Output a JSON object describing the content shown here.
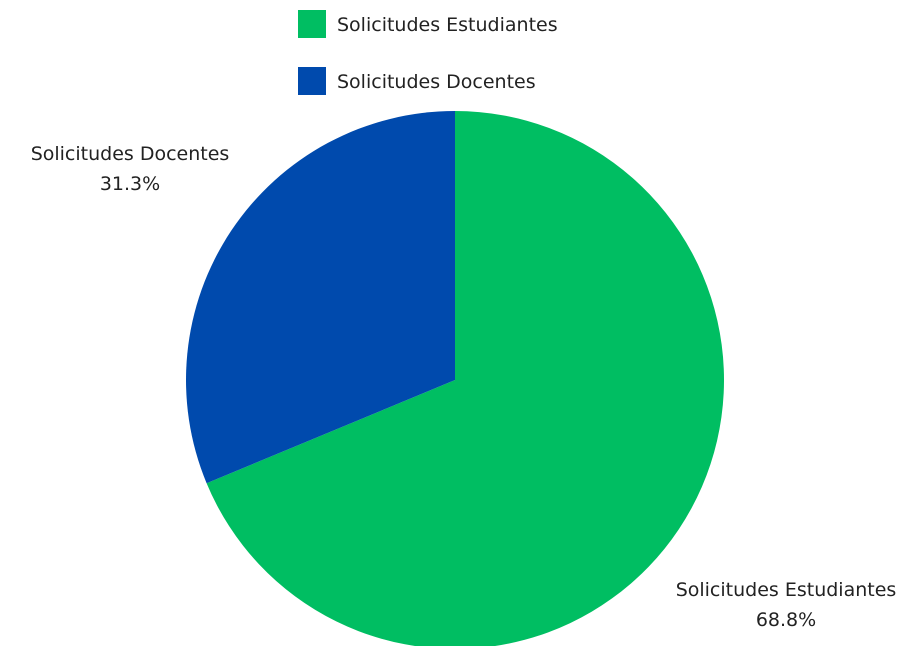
{
  "chart_data": {
    "type": "pie",
    "title": "",
    "legend_position": "top",
    "categories": [
      "Solicitudes Estudiantes",
      "Solicitudes Docentes"
    ],
    "values": [
      68.8,
      31.3
    ],
    "value_labels": [
      "68.8%",
      "31.3%"
    ],
    "colors": [
      "#00BE62",
      "#004AAD"
    ]
  }
}
